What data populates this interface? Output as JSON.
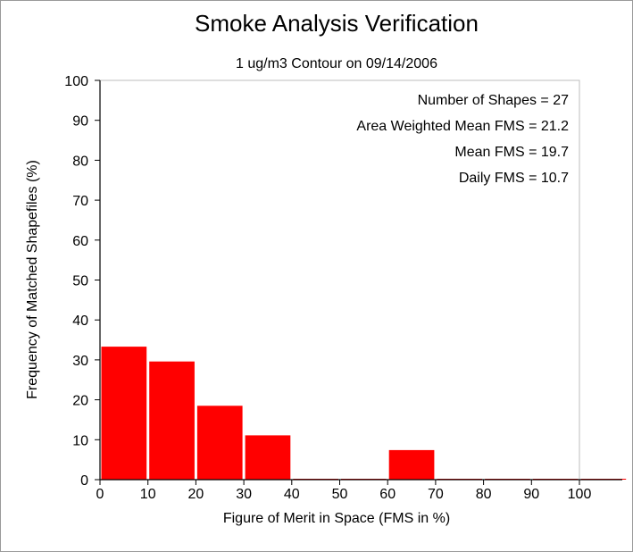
{
  "chart_data": {
    "type": "bar",
    "title": "Smoke Analysis Verification",
    "subtitle": "1 ug/m3 Contour on 09/14/2006",
    "xlabel": "Figure of Merit in Space (FMS in %)",
    "ylabel": "Frequency of Matched Shapefiles (%)",
    "xlim": [
      0,
      100
    ],
    "ylim": [
      0,
      100
    ],
    "x_ticks": [
      "0",
      "10",
      "20",
      "30",
      "40",
      "50",
      "60",
      "70",
      "80",
      "90",
      "100"
    ],
    "y_ticks": [
      "0",
      "10",
      "20",
      "30",
      "40",
      "50",
      "60",
      "70",
      "80",
      "90",
      "100"
    ],
    "bins": [
      {
        "start": 0,
        "end": 10,
        "value": 33.3
      },
      {
        "start": 10,
        "end": 20,
        "value": 29.6
      },
      {
        "start": 20,
        "end": 30,
        "value": 18.5
      },
      {
        "start": 30,
        "end": 40,
        "value": 11.1
      },
      {
        "start": 40,
        "end": 50,
        "value": 0
      },
      {
        "start": 50,
        "end": 60,
        "value": 0
      },
      {
        "start": 60,
        "end": 70,
        "value": 7.4
      },
      {
        "start": 70,
        "end": 80,
        "value": 0
      },
      {
        "start": 80,
        "end": 90,
        "value": 0
      },
      {
        "start": 90,
        "end": 100,
        "value": 0
      },
      {
        "start": 100,
        "end": 110,
        "value": 0
      }
    ],
    "bar_color": "#ff0000",
    "grid": false,
    "stats": [
      "Number of Shapes = 27",
      "Area Weighted Mean FMS = 21.2",
      "Mean FMS = 19.7",
      "Daily FMS = 10.7"
    ]
  }
}
